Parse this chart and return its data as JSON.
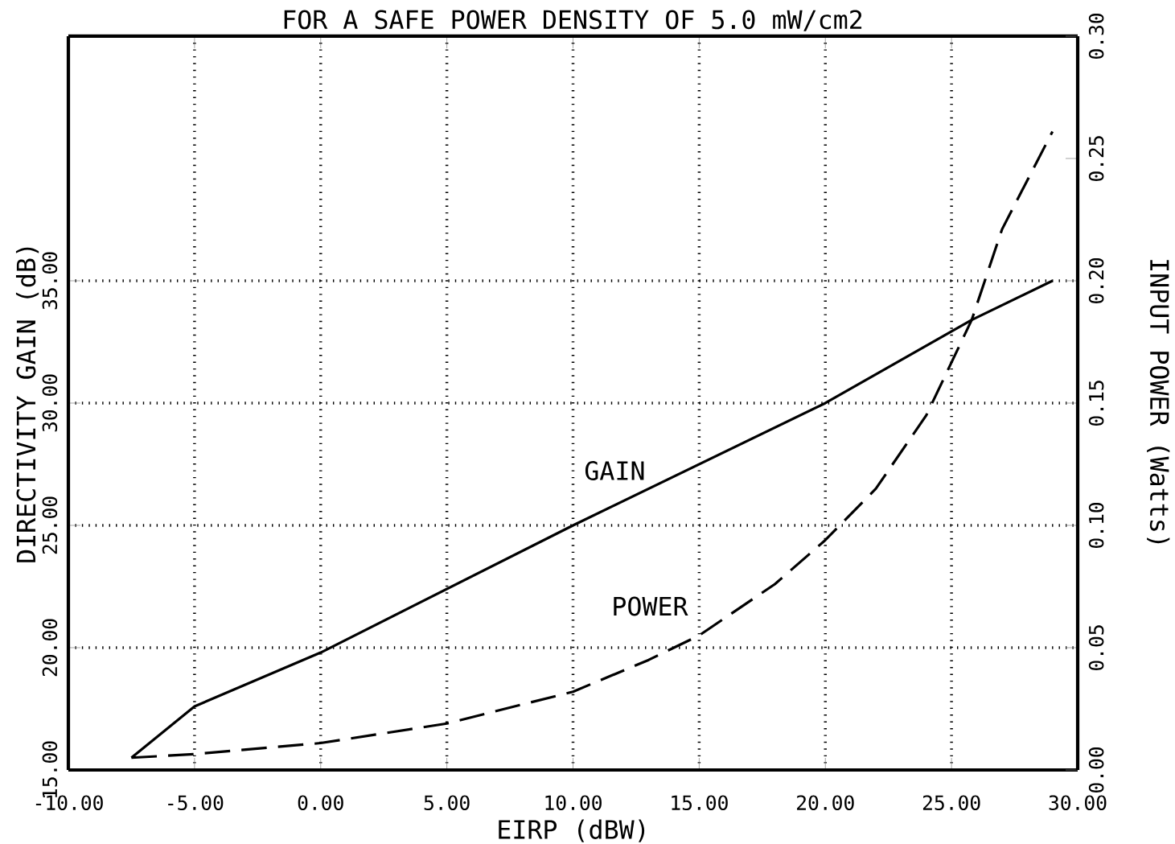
{
  "chart_data": {
    "type": "line",
    "title": "FOR A SAFE POWER DENSITY OF  5.0 mW/cm2",
    "xlabel": "EIRP  (dBW)",
    "ylabel": "DIRECTIVITY GAIN (dB)",
    "y2label": "INPUT POWER (Watts)",
    "xlim": [
      -10,
      30
    ],
    "xticks": [
      {
        "value": -10,
        "label": "-10.00"
      },
      {
        "value": -5,
        "label": "-5.00"
      },
      {
        "value": 0,
        "label": "0.00"
      },
      {
        "value": 5,
        "label": "5.00"
      },
      {
        "value": 10,
        "label": "10.00"
      },
      {
        "value": 15,
        "label": "15.00"
      },
      {
        "value": 20,
        "label": "20.00"
      },
      {
        "value": 25,
        "label": "25.00"
      },
      {
        "value": 30,
        "label": "30.00"
      }
    ],
    "ylim": [
      15,
      45
    ],
    "yticks": [
      {
        "value": 15,
        "label": "15.00"
      },
      {
        "value": 20,
        "label": "20.00"
      },
      {
        "value": 25,
        "label": "25.00"
      },
      {
        "value": 30,
        "label": "30.00"
      },
      {
        "value": 35,
        "label": "35.00"
      }
    ],
    "y2lim": [
      0,
      0.3
    ],
    "y2ticks": [
      {
        "value": 0,
        "label": "0.00"
      },
      {
        "value": 0.05,
        "label": "0.05"
      },
      {
        "value": 0.1,
        "label": "0.10"
      },
      {
        "value": 0.15,
        "label": "0.15"
      },
      {
        "value": 0.2,
        "label": "0.20"
      },
      {
        "value": 0.25,
        "label": "0.25"
      },
      {
        "value": 0.3,
        "label": "0.30"
      }
    ],
    "grid": true,
    "legend": false,
    "marker": "none",
    "series": [
      {
        "name": "GAIN",
        "color": "#000000",
        "line_style": "solid",
        "x": [
          -7.5,
          -5,
          0,
          5,
          10,
          15,
          20,
          25.8,
          29
        ],
        "values": [
          15.5,
          17.6,
          19.8,
          22.4,
          25,
          27.5,
          30,
          33.4,
          35
        ]
      },
      {
        "name": "POWER",
        "color": "#000000",
        "line_style": "dashed",
        "axis": "y2",
        "x": [
          -7.5,
          -5,
          0,
          5,
          10,
          13,
          15,
          18,
          20,
          22,
          24,
          25.8,
          27,
          29
        ],
        "values": [
          0.005,
          0.0065,
          0.011,
          0.019,
          0.032,
          0.045,
          0.055,
          0.076,
          0.094,
          0.115,
          0.145,
          0.184,
          0.221,
          0.261
        ]
      }
    ]
  }
}
